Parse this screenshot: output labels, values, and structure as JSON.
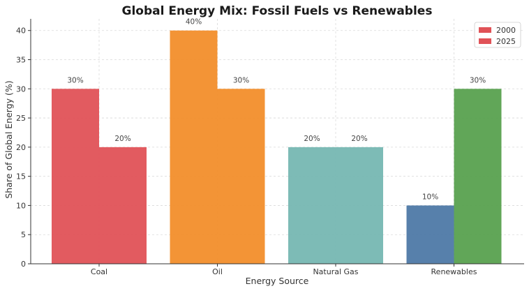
{
  "chart_data": {
    "type": "bar",
    "title": "Global Energy Mix: Fossil Fuels vs Renewables",
    "xlabel": "Energy Source",
    "ylabel": "Share of Global Energy (%)",
    "categories": [
      "Coal",
      "Oil",
      "Natural Gas",
      "Renewables"
    ],
    "series": [
      {
        "name": "2000",
        "values": [
          30,
          40,
          20,
          10
        ]
      },
      {
        "name": "2025",
        "values": [
          20,
          30,
          20,
          30
        ]
      }
    ],
    "data_labels": [
      [
        "30%",
        "40%",
        "20%",
        "10%"
      ],
      [
        "20%",
        "30%",
        "20%",
        "30%"
      ]
    ],
    "bar_colors": [
      [
        "#e05257",
        "#f28e2b",
        "#76b7b2",
        "#4e79a7"
      ],
      [
        "#e05257",
        "#f28e2b",
        "#76b7b2",
        "#59a14f"
      ]
    ],
    "legend_colors": [
      "#e05257",
      "#e05257"
    ],
    "yticks": [
      0,
      5,
      10,
      15,
      20,
      25,
      30,
      35,
      40
    ],
    "ylim": [
      0,
      42
    ],
    "grid": true,
    "legend_position": "top-right"
  }
}
